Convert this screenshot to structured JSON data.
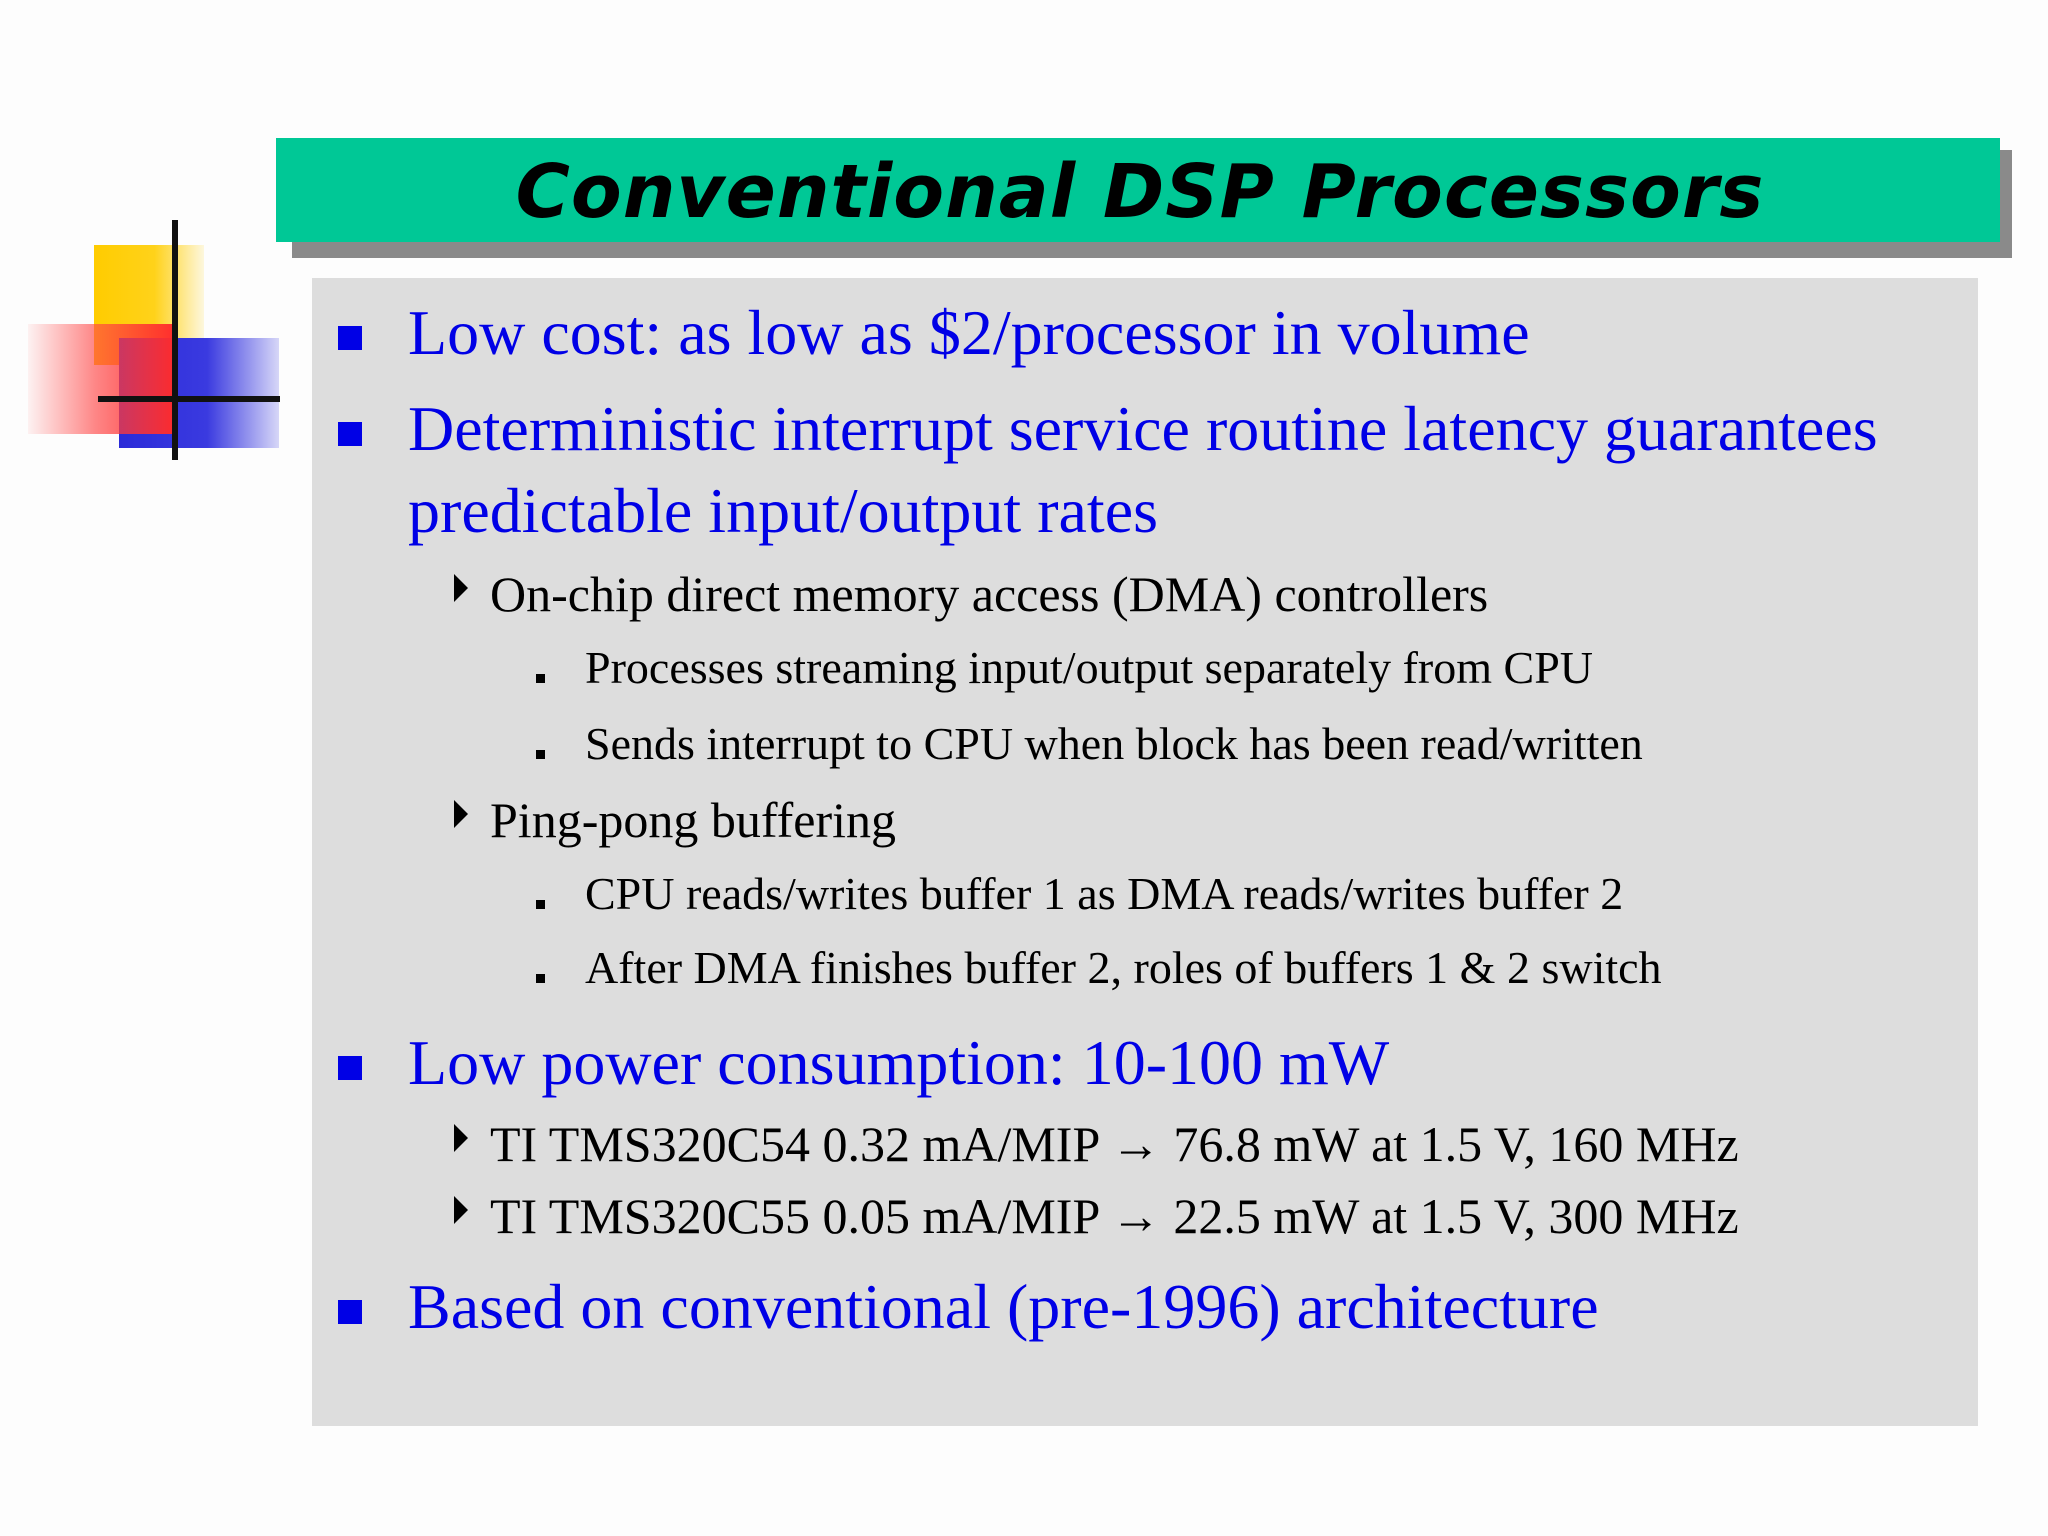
{
  "slide": {
    "title": "Conventional DSP Processors",
    "accent_color": "#00c896",
    "bullet_color": "#0000e6",
    "items": [
      {
        "level": 1,
        "text": "Low cost: as low as $2/processor in volume"
      },
      {
        "level": 1,
        "text": "Deterministic interrupt service routine latency guarantees predictable input/output rates"
      },
      {
        "level": 2,
        "text": "On-chip direct memory access (DMA) controllers"
      },
      {
        "level": 3,
        "text": "Processes streaming input/output separately from CPU"
      },
      {
        "level": 3,
        "text": "Sends interrupt to CPU when block has been read/written"
      },
      {
        "level": 2,
        "text": "Ping-pong buffering"
      },
      {
        "level": 3,
        "text": "CPU reads/writes buffer 1 as DMA reads/writes buffer 2"
      },
      {
        "level": 3,
        "text": "After DMA finishes buffer 2, roles of buffers 1 & 2 switch"
      },
      {
        "level": 1,
        "text": "Low power consumption: 10-100 mW"
      },
      {
        "level": 2,
        "text": "TI TMS320C54 0.32 mA/MIP → 76.8 mW at 1.5 V, 160 MHz"
      },
      {
        "level": 2,
        "text": "TI TMS320C55 0.05 mA/MIP → 22.5 mW at 1.5 V, 300 MHz"
      },
      {
        "level": 1,
        "text": "Based on conventional (pre-1996) architecture"
      }
    ]
  }
}
